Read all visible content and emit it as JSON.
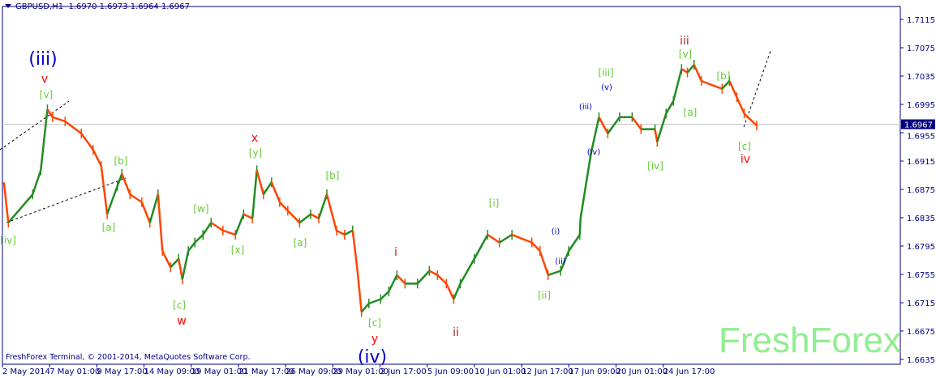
{
  "header": {
    "symbol": "GBPUSD,H1",
    "ohlc": "1.6970 1.6973 1.6964 1.6967"
  },
  "footer": {
    "copyright": "FreshForex Terminal, © 2001-2014, MetaQuotes Software Corp.",
    "brand": "FreshForex"
  },
  "chart_data": {
    "type": "line",
    "title": "GBPUSD,H1",
    "x_unit": "bar index (H1)",
    "ylim": [
      1.6615,
      1.7135
    ],
    "current_price": 1.6967,
    "y_ticks": [
      "1.7115",
      "1.7075",
      "1.7035",
      "1.6995",
      "1.6955",
      "1.6915",
      "1.6875",
      "1.6835",
      "1.6795",
      "1.6755",
      "1.6715",
      "1.6675",
      "1.6635"
    ],
    "x_ticks": [
      "2 May 2014",
      "7 May 01:00",
      "9 May 17:00",
      "14 May 09:00",
      "19 May 01:00",
      "21 May 17:00",
      "26 May 09:00",
      "29 May 01:00",
      "2 Jun 17:00",
      "5 Jun 09:00",
      "10 Jun 01:00",
      "12 Jun 17:00",
      "17 Jun 09:00",
      "20 Jun 01:00",
      "24 Jun 17:00"
    ],
    "series": [
      {
        "x": [
          2,
          8,
          41,
          52,
          61,
          68,
          85,
          107,
          123,
          134,
          142,
          156,
          162,
          173,
          189,
          200,
          211,
          217,
          228,
          239,
          244,
          252,
          261,
          272,
          283,
          299,
          316,
          327,
          339,
          345,
          354,
          365,
          376,
          387,
          403,
          418,
          429,
          440,
          453,
          464,
          475,
          481,
          487,
          497,
          513,
          524,
          535,
          546,
          563,
          579,
          590,
          602,
          612,
          621,
          640,
          658,
          674,
          691,
          718,
          729,
          740,
          757,
          768,
          783,
          784,
          798,
          809,
          821,
          837,
          854,
          866,
          885,
          888,
          900,
          910,
          921,
          929,
          938,
          948,
          976,
          986,
          996,
          1006,
          1023
        ],
        "close": [
          1.6885,
          1.6828,
          1.6868,
          1.6902,
          1.6988,
          1.6977,
          1.6971,
          1.6954,
          1.6931,
          1.6908,
          1.684,
          1.688,
          1.6897,
          1.6868,
          1.6857,
          1.6828,
          1.6868,
          1.6788,
          1.6765,
          1.6777,
          1.6748,
          1.6788,
          1.68,
          1.6811,
          1.6828,
          1.6817,
          1.6811,
          1.684,
          1.6834,
          1.6902,
          1.6868,
          1.6885,
          1.6857,
          1.6845,
          1.6828,
          1.684,
          1.6834,
          1.6868,
          1.6817,
          1.6811,
          1.6817,
          1.6765,
          1.6702,
          1.6714,
          1.672,
          1.6731,
          1.6754,
          1.6742,
          1.6742,
          1.676,
          1.6754,
          1.6742,
          1.672,
          1.6742,
          1.6777,
          1.6811,
          1.68,
          1.6811,
          1.68,
          1.6788,
          1.6754,
          1.676,
          1.6788,
          1.6811,
          1.6834,
          1.6925,
          1.6977,
          1.6954,
          1.6977,
          1.6977,
          1.696,
          1.696,
          1.6942,
          1.6982,
          1.7,
          1.7045,
          1.704,
          1.7051,
          1.7028,
          1.7017,
          1.7028,
          1.7005,
          1.6982,
          1.6965
        ]
      }
    ],
    "annotations": [
      {
        "text": "(iii)",
        "color": "#0000cd"
      },
      {
        "text": "v",
        "color": "#ff0000"
      },
      {
        "text": "[v]",
        "color": "#66cc33"
      },
      {
        "text": "[b]",
        "color": "#66cc33"
      },
      {
        "text": "[a]",
        "color": "#66cc33"
      },
      {
        "text": "[iv]",
        "color": "#66cc33"
      },
      {
        "text": "[w]",
        "color": "#66cc33"
      },
      {
        "text": "[c]",
        "color": "#66cc33"
      },
      {
        "text": "w",
        "color": "#ff0000"
      },
      {
        "text": "[x]",
        "color": "#66cc33"
      },
      {
        "text": "x",
        "color": "#ff0000"
      },
      {
        "text": "[y]",
        "color": "#66cc33"
      },
      {
        "text": "[a]",
        "color": "#66cc33"
      },
      {
        "text": "[b]",
        "color": "#66cc33"
      },
      {
        "text": "i",
        "color": "#ff0000"
      },
      {
        "text": "y",
        "color": "#ff0000"
      },
      {
        "text": "[c]",
        "color": "#66cc33"
      },
      {
        "text": "(iv)",
        "color": "#0000cd"
      },
      {
        "text": "ii",
        "color": "#a52a2a"
      },
      {
        "text": "[i]",
        "color": "#66cc33"
      },
      {
        "text": "[ii]",
        "color": "#66cc33"
      },
      {
        "text": "(i)",
        "color": "#0000cd"
      },
      {
        "text": "(ii)",
        "color": "#0000cd"
      },
      {
        "text": "(iii)",
        "color": "#0000cd"
      },
      {
        "text": "(iv)",
        "color": "#0000cd"
      },
      {
        "text": "(v)",
        "color": "#0000cd"
      },
      {
        "text": "[iii]",
        "color": "#66cc33"
      },
      {
        "text": "[iv]",
        "color": "#66cc33"
      },
      {
        "text": "iii",
        "color": "#a52a2a"
      },
      {
        "text": "[v]",
        "color": "#66cc33"
      },
      {
        "text": "[a]",
        "color": "#66cc33"
      },
      {
        "text": "[b]",
        "color": "#66cc33"
      },
      {
        "text": "[c]",
        "color": "#66cc33"
      },
      {
        "text": "iv",
        "color": "#ff0000"
      }
    ],
    "colors": {
      "up": "#228b22",
      "down": "#ff4500",
      "axis": "#000080",
      "price_line": "#c8c8c8"
    },
    "grid": false
  }
}
